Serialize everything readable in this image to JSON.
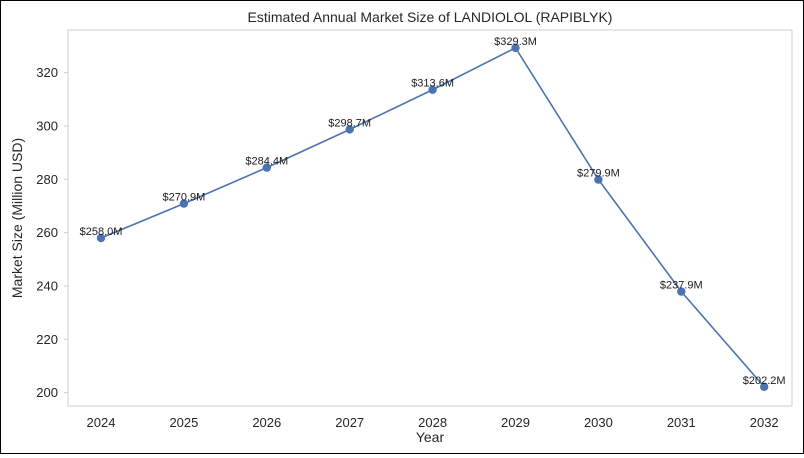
{
  "chart_data": {
    "type": "line",
    "title": "Estimated Annual Market Size of LANDIOLOL (RAPIBLYK)",
    "xlabel": "Year",
    "ylabel": "Market Size (Million USD)",
    "categories": [
      "2024",
      "2025",
      "2026",
      "2027",
      "2028",
      "2029",
      "2030",
      "2031",
      "2032"
    ],
    "series": [
      {
        "values": [
          258.0,
          270.9,
          284.4,
          298.7,
          313.6,
          329.3,
          279.9,
          237.9,
          202.2
        ],
        "labels": [
          "$258.0M",
          "$270.9M",
          "$284.4M",
          "$298.7M",
          "$313.6M",
          "$329.3M",
          "$279.9M",
          "$237.9M",
          "$202.2M"
        ],
        "color": "#4c72b0"
      }
    ],
    "ylim": [
      195,
      336
    ],
    "yticks": [
      200,
      220,
      240,
      260,
      280,
      300,
      320
    ],
    "grid": false,
    "legend": "none"
  }
}
